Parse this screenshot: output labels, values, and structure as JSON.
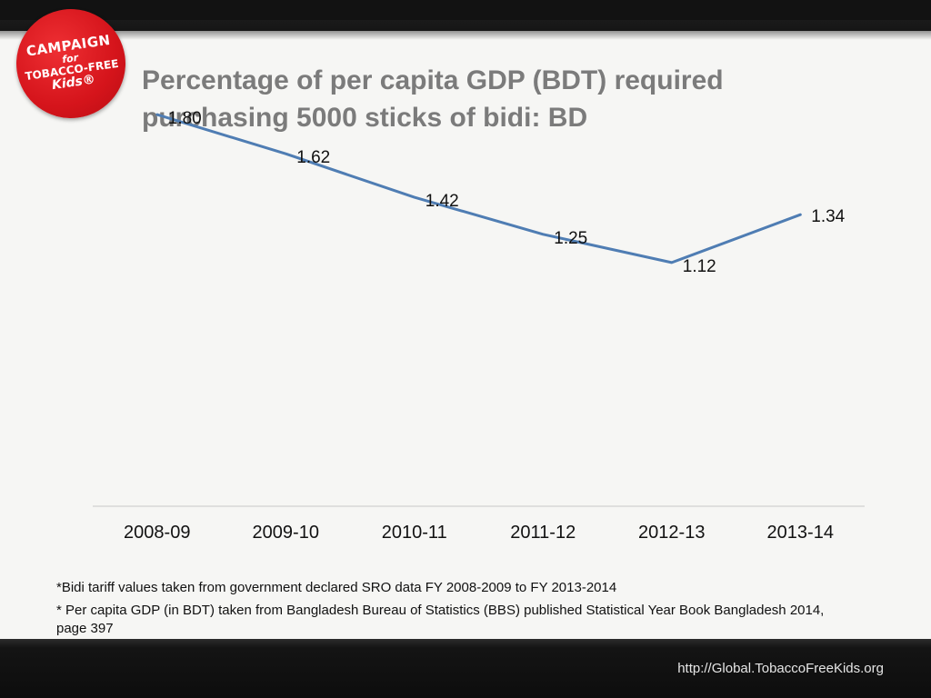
{
  "logo": {
    "line1": "CAMPAIGN",
    "line2": "for",
    "line3": "TOBACCO-FREE",
    "line4": "Kids®"
  },
  "title": {
    "line1": "Percentage of per capita GDP (BDT) required",
    "line2": "purchasing 5000 sticks of bidi: BD"
  },
  "chart_data": {
    "type": "line",
    "title": "Percentage of per capita GDP (BDT) required purchasing 5000 sticks of bidi: BD",
    "categories": [
      "2008-09",
      "2009-10",
      "2010-11",
      "2011-12",
      "2012-13",
      "2013-14"
    ],
    "series": [
      {
        "name": "Percentage of per capita GDP",
        "values": [
          1.8,
          1.62,
          1.42,
          1.25,
          1.12,
          1.34
        ],
        "labels": [
          "1.80",
          "1.62",
          "1.42",
          "1.25",
          "1.12",
          "1.34"
        ]
      }
    ],
    "xlabel": "",
    "ylabel": "",
    "ylim": [
      0,
      2.5
    ],
    "grid": false,
    "legend": "none",
    "line_color": "#4f7db3"
  },
  "notes": {
    "note1": "*Bidi tariff values taken from government declared SRO data FY 2008-2009 to FY 2013-2014",
    "note2": "* Per capita GDP (in BDT) taken from Bangladesh Bureau of Statistics (BBS) published Statistical Year Book Bangladesh 2014, page 397"
  },
  "footer": {
    "url": "http://Global.TobaccoFreeKids.org"
  }
}
